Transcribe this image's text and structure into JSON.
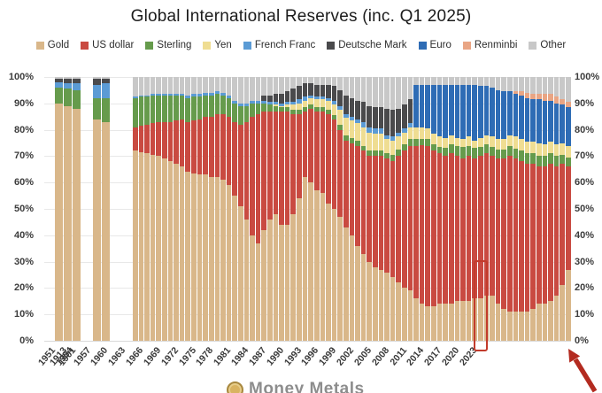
{
  "title": "Global International Reserves (inc. Q1 2025)",
  "legend": [
    {
      "label": "Gold",
      "color": "#D9B78A"
    },
    {
      "label": "US dollar",
      "color": "#C94A41"
    },
    {
      "label": "Sterling",
      "color": "#669B4C"
    },
    {
      "label": "Yen",
      "color": "#EFDD92"
    },
    {
      "label": "French Franc",
      "color": "#5B9BD5"
    },
    {
      "label": "Deutsche Mark",
      "color": "#4A4A4C"
    },
    {
      "label": "Euro",
      "color": "#2E6CB5"
    },
    {
      "label": "Renminbi",
      "color": "#E9A584"
    },
    {
      "label": "Other",
      "color": "#C8C8C8"
    }
  ],
  "axis": {
    "y_ticks": [
      "100%",
      "90%",
      "80%",
      "70%",
      "60%",
      "50%",
      "40%",
      "30%",
      "20%",
      "10%",
      "0%"
    ]
  },
  "annotation": {
    "type": "highlight-box-and-arrow",
    "color": "#c23b2c",
    "target": "Q1 2025 bar",
    "box_top_percent": 29.5
  },
  "watermark": {
    "icon": "gold-coin",
    "text": "Money Metals",
    "note": "cut off at bottom edge"
  },
  "chart_data": {
    "type": "bar",
    "stacked": true,
    "stacked_to": "100%",
    "unit": "% of global international reserves",
    "series_names": [
      "Gold",
      "US dollar",
      "Sterling",
      "Yen",
      "French Franc",
      "Deutsche Mark",
      "Euro",
      "Renminbi",
      "Other"
    ],
    "colors": [
      "#D9B78A",
      "#C94A41",
      "#669B4C",
      "#EFDD92",
      "#5B9BD5",
      "#4A4A4C",
      "#2E6CB5",
      "#E9A584",
      "#C8C8C8"
    ],
    "x_tick_labels_main": [
      "1951",
      "1954",
      "1957",
      "1960",
      "1963",
      "1966",
      "1969",
      "1972",
      "1975",
      "1978",
      "1981",
      "1984",
      "1987",
      "1990",
      "1993",
      "1996",
      "1999",
      "2002",
      "2005",
      "2008",
      "2011",
      "2014",
      "2017",
      "2020",
      "2023"
    ],
    "groups": [
      {
        "start_year": 1899,
        "ticks": [
          [
            2,
            "1901"
          ]
        ],
        "bars": [
          [
            90,
            0,
            6,
            0,
            2,
            1.5,
            0,
            0,
            0.5
          ],
          [
            89,
            0,
            6.5,
            0,
            2,
            2,
            0,
            0,
            0.5
          ],
          [
            88,
            0,
            7,
            0,
            2.5,
            2,
            0,
            0,
            0.5
          ]
        ]
      },
      {
        "start_year": 1912,
        "ticks": [
          [
            1,
            "1913"
          ]
        ],
        "bars": [
          [
            84,
            0,
            8,
            0,
            5,
            2.5,
            0,
            0,
            0.5
          ],
          [
            83,
            0,
            9,
            0,
            5.5,
            2,
            0,
            0,
            0.5
          ]
        ]
      },
      {
        "start_year": 1951,
        "ticks": "main",
        "bars": [
          [
            72,
            9,
            11,
            0,
            0.5,
            0,
            0,
            0,
            7.5
          ],
          [
            71.5,
            10,
            11,
            0,
            0.5,
            0,
            0,
            0,
            7
          ],
          [
            71,
            11,
            10.5,
            0,
            0.5,
            0,
            0,
            0,
            7
          ],
          [
            70.5,
            12,
            10.5,
            0,
            0.5,
            0,
            0,
            0,
            6.5
          ],
          [
            70,
            13,
            10,
            0,
            0.5,
            0,
            0,
            0,
            6.5
          ],
          [
            69,
            14,
            10,
            0,
            0.5,
            0,
            0,
            0,
            6.5
          ],
          [
            68,
            15,
            10,
            0,
            0.5,
            0,
            0,
            0,
            6.5
          ],
          [
            67,
            16.5,
            9.5,
            0,
            0.5,
            0,
            0,
            0,
            6.5
          ],
          [
            66,
            18,
            9,
            0,
            0.5,
            0,
            0,
            0,
            6.5
          ],
          [
            64,
            19,
            9,
            0,
            1,
            0,
            0,
            0,
            7
          ],
          [
            63.5,
            20,
            9,
            0,
            1,
            0,
            0,
            0,
            6.5
          ],
          [
            63,
            21,
            8.5,
            0,
            1,
            0,
            0,
            0,
            6.5
          ],
          [
            63,
            22,
            8,
            0,
            1,
            0,
            0,
            0,
            6
          ],
          [
            62,
            23,
            8,
            0,
            1,
            0,
            0,
            0,
            6
          ],
          [
            62,
            24,
            7.5,
            0,
            1,
            0,
            0,
            0,
            5.5
          ],
          [
            61,
            25,
            7,
            0,
            1,
            0,
            0,
            0,
            6
          ],
          [
            59,
            26,
            7,
            0,
            1,
            0,
            0,
            0,
            7
          ],
          [
            55,
            28,
            7,
            0,
            1,
            0,
            0,
            0,
            9
          ],
          [
            51,
            31,
            7,
            0,
            1,
            0,
            0,
            0,
            10
          ],
          [
            46,
            37,
            6,
            0,
            1,
            0,
            0,
            0,
            10
          ],
          [
            40,
            45,
            5,
            0,
            1,
            0,
            0,
            0,
            9
          ],
          [
            37,
            49,
            4,
            0,
            1,
            0,
            0,
            0,
            9
          ],
          [
            42,
            45,
            3,
            0,
            1,
            2,
            0,
            0,
            7
          ],
          [
            46,
            41,
            2.5,
            0,
            1,
            2.5,
            0,
            0,
            7
          ],
          [
            48,
            39,
            2,
            0.5,
            1,
            3,
            0,
            0,
            6.5
          ],
          [
            44,
            43,
            1.5,
            0.5,
            1,
            3.5,
            0,
            0,
            6.5
          ],
          [
            44,
            43,
            1.5,
            1,
            1,
            4,
            0,
            0,
            5.5
          ],
          [
            48,
            38,
            1.5,
            2,
            1,
            5,
            0,
            0,
            4.5
          ],
          [
            54,
            32,
            1.5,
            2.5,
            1.5,
            5,
            0,
            0,
            3.5
          ],
          [
            62,
            25,
            1.5,
            2.5,
            1.5,
            5,
            0,
            0,
            2.5
          ],
          [
            60,
            28,
            1.5,
            2.5,
            1,
            4.5,
            0,
            0,
            2.5
          ],
          [
            57,
            30,
            1.5,
            3,
            1,
            4.5,
            0,
            0,
            3
          ],
          [
            56,
            31,
            1.5,
            3,
            1,
            4.5,
            0,
            0,
            3
          ],
          [
            52,
            34,
            1.5,
            3.5,
            1,
            5,
            0,
            0,
            3
          ],
          [
            50,
            34,
            1.5,
            4,
            1.5,
            5.5,
            0,
            0,
            3.5
          ],
          [
            47,
            33,
            2,
            5.5,
            1.5,
            6,
            0,
            0,
            5
          ],
          [
            43,
            33,
            2,
            6.5,
            1.5,
            7,
            0,
            0,
            7
          ],
          [
            40,
            35,
            2,
            6.5,
            1.5,
            7,
            0,
            0,
            8
          ],
          [
            36,
            38,
            2,
            6.5,
            1.5,
            7,
            0,
            0,
            9
          ],
          [
            33,
            39,
            2,
            7,
            2,
            7.5,
            0,
            0,
            9.5
          ],
          [
            30,
            40,
            2,
            7,
            2,
            8,
            0,
            0,
            11
          ],
          [
            28,
            42,
            2,
            6.5,
            2,
            8,
            0,
            0,
            11.5
          ],
          [
            27,
            43,
            2,
            6.5,
            2,
            8,
            0,
            0,
            11.5
          ],
          [
            26,
            43,
            2,
            5.5,
            1.5,
            10,
            0,
            0,
            12
          ],
          [
            24,
            44,
            2.5,
            5.5,
            1.5,
            10,
            0,
            0,
            12.5
          ],
          [
            22,
            48,
            2.5,
            5,
            1.5,
            9,
            0,
            0,
            12
          ],
          [
            20,
            52,
            2.5,
            4.5,
            1.5,
            9,
            0,
            0,
            10.5
          ],
          [
            19,
            55,
            2.5,
            4.5,
            1.5,
            9,
            0,
            0,
            8.5
          ],
          [
            16,
            58,
            2.5,
            4.5,
            0,
            0,
            16,
            0,
            3
          ],
          [
            14,
            60,
            2.5,
            4.5,
            0,
            0,
            16,
            0,
            3
          ],
          [
            13,
            61,
            2.5,
            4,
            0,
            0,
            16.5,
            0,
            3
          ],
          [
            13,
            59,
            2.5,
            4,
            0,
            0,
            18.5,
            0,
            3
          ],
          [
            14,
            57,
            2.5,
            4,
            0,
            0,
            19.5,
            0,
            3
          ],
          [
            14,
            56,
            3,
            4,
            0,
            0,
            20,
            0,
            3
          ],
          [
            14,
            57,
            3.5,
            3.5,
            0,
            0,
            19,
            0,
            3
          ],
          [
            15,
            55,
            4,
            3,
            0,
            0,
            20,
            0,
            3
          ],
          [
            15,
            54,
            4.5,
            3,
            0,
            0,
            20.5,
            0,
            3
          ],
          [
            15,
            55,
            4,
            3.5,
            0,
            0,
            19.5,
            0,
            3
          ],
          [
            16,
            53,
            4,
            3,
            0,
            0,
            21,
            0,
            3
          ],
          [
            16,
            54,
            3.5,
            3.5,
            0,
            0,
            19.5,
            0,
            3.5
          ],
          [
            17,
            54,
            3.5,
            3.5,
            0,
            0,
            18.5,
            0,
            3.5
          ],
          [
            17,
            53,
            3.5,
            4,
            0,
            0,
            18.5,
            0,
            4
          ],
          [
            14,
            55,
            3.5,
            4,
            0,
            0,
            18.5,
            0,
            5
          ],
          [
            12,
            57,
            3.5,
            4,
            0,
            0,
            18,
            0,
            5.5
          ],
          [
            11,
            59,
            4,
            4,
            0,
            0,
            16.5,
            0,
            5.5
          ],
          [
            11,
            58,
            4,
            4.5,
            0,
            0,
            16,
            1,
            5.5
          ],
          [
            11,
            57,
            4,
            4.5,
            0,
            0,
            16.5,
            1.5,
            5.5
          ],
          [
            11,
            56,
            4,
            4.5,
            0,
            0,
            16.5,
            2,
            6
          ],
          [
            12,
            55,
            4,
            4.5,
            0,
            0,
            16,
            2,
            6.5
          ],
          [
            14,
            52,
            4,
            5,
            0,
            0,
            16.5,
            2,
            6.5
          ],
          [
            14,
            52,
            4,
            4.5,
            0,
            0,
            16.5,
            2.5,
            6.5
          ],
          [
            15,
            52,
            4,
            4.5,
            0,
            0,
            15.5,
            2.5,
            6.5
          ],
          [
            17,
            49,
            4,
            4.5,
            0,
            0,
            15.5,
            2.5,
            7.5
          ],
          [
            21,
            46,
            3.5,
            4.5,
            0,
            0,
            14.5,
            2.2,
            8.3
          ],
          [
            27,
            39,
            3.5,
            4.5,
            0,
            0,
            14.5,
            2,
            9.5
          ]
        ]
      }
    ]
  }
}
